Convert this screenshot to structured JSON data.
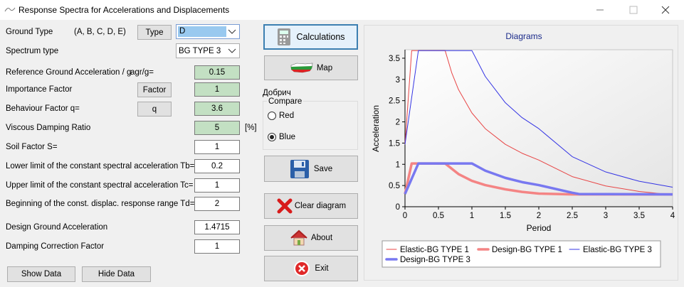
{
  "window": {
    "title": "Response Spectra for Accelerations and Displacements"
  },
  "ground_type": {
    "label": "Ground Type",
    "options_hint": "(A, B, C, D, E)",
    "button": "Type",
    "value": "D"
  },
  "spectrum_type": {
    "label": "Spectrum type",
    "value": "BG TYPE 3"
  },
  "fields": [
    {
      "label": "Reference Ground Acceleration / g",
      "symbol": "agr/g=",
      "value": 0.15,
      "background": "#c3e0c3"
    },
    {
      "label": "Importance Factor",
      "button": "Factor",
      "value": 1,
      "background": "#c3e0c3"
    },
    {
      "label": "Behaviour Factor q=",
      "button": "q",
      "value": 3.6,
      "background": "#c3e0c3"
    },
    {
      "label": "Viscous Damping Ratio",
      "value": 5,
      "unit": "[%]",
      "background": "#c3e0c3"
    },
    {
      "label": "Soil Factor S=",
      "value": 1
    },
    {
      "label": "Lower limit of the constant spectral acceleration Tb=",
      "value": 0.2
    },
    {
      "label": "Upper limit of the constant spectral acceleration Tc=",
      "value": 1
    },
    {
      "label": "Beginning of the const. displac. response range Td=",
      "value": 2
    },
    {
      "label": "Design Ground Acceleration",
      "value": 1.4715
    },
    {
      "label": "Damping Correction Factor",
      "value": 1
    }
  ],
  "data_buttons": [
    "Show Data",
    "Hide Data"
  ],
  "actions": {
    "calculations": "Calculations",
    "map": "Map",
    "location": "Добрич",
    "compare": {
      "title": "Compare",
      "options": [
        "Red",
        "Blue"
      ],
      "selected": "Blue"
    },
    "save": "Save",
    "clear": "Clear diagram",
    "about": "About",
    "exit": "Exit"
  },
  "chart_data": {
    "type": "line",
    "title": "Diagrams",
    "x_label": "Period",
    "y_label": "Acceleration",
    "xlim": [
      0,
      4
    ],
    "ylim": [
      0,
      3.7
    ],
    "xticks": [
      0,
      0.5,
      1,
      1.5,
      2,
      2.5,
      3,
      3.5,
      4
    ],
    "yticks": [
      0,
      0.5,
      1,
      1.5,
      2,
      2.5,
      3,
      3.5
    ],
    "series": [
      {
        "name": "Elastic-BG TYPE 1",
        "color": "#e84646",
        "width": 1,
        "x": [
          0,
          0.1,
          0.6,
          0.7,
          0.8,
          1,
          1.2,
          1.5,
          1.75,
          2,
          2.5,
          3,
          3.5,
          4
        ],
        "values": [
          1.47,
          3.68,
          3.68,
          3.15,
          2.76,
          2.21,
          1.84,
          1.47,
          1.26,
          1.1,
          0.71,
          0.49,
          0.36,
          0.28
        ]
      },
      {
        "name": "Design-BG TYPE 1",
        "color": "#f48484",
        "width": 3.5,
        "x": [
          0,
          0.1,
          0.6,
          0.8,
          1,
          1.2,
          1.5,
          1.75,
          2,
          2.5,
          4
        ],
        "values": [
          0.3,
          1.02,
          1.02,
          0.77,
          0.61,
          0.51,
          0.41,
          0.35,
          0.31,
          0.29,
          0.29
        ]
      },
      {
        "name": "Elastic-BG TYPE 3",
        "color": "#3434e4",
        "width": 1,
        "x": [
          0,
          0.2,
          1,
          1.2,
          1.5,
          1.75,
          2,
          2.5,
          3,
          3.5,
          4
        ],
        "values": [
          1.47,
          3.68,
          3.68,
          3.07,
          2.45,
          2.1,
          1.84,
          1.18,
          0.82,
          0.6,
          0.46
        ]
      },
      {
        "name": "Design-BG TYPE 3",
        "color": "#7878f0",
        "width": 3.5,
        "x": [
          0,
          0.2,
          1,
          1.2,
          1.5,
          1.75,
          2,
          2.5,
          2.6,
          4
        ],
        "values": [
          0.3,
          1.02,
          1.02,
          0.85,
          0.68,
          0.58,
          0.51,
          0.33,
          0.3,
          0.29
        ]
      }
    ]
  }
}
